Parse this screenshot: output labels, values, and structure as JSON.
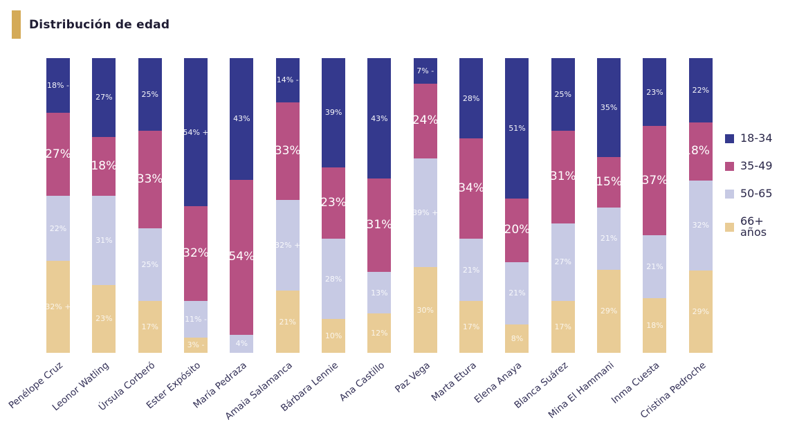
{
  "header": {
    "title": "Distribución de edad",
    "accent_color": "#d4aa57"
  },
  "chart_data": {
    "type": "bar",
    "variant": "stacked-100-percent-column",
    "title": "Distribución de edad",
    "grid": false,
    "ylim": [
      0,
      100
    ],
    "legend_position": "right",
    "categories": [
      "Penélope Cruz",
      "Leonor Watling",
      "Úrsula Corberó",
      "Ester Expósito",
      "María Pedraza",
      "Amaia Salamanca",
      "Bárbara Lennie",
      "Ana Castillo",
      "Paz Vega",
      "Marta Etura",
      "Elena Anaya",
      "Blanca Suárez",
      "Mina El Hammani",
      "Inma Cuesta",
      "Cristina Pedroche"
    ],
    "series": [
      {
        "name": "18-34",
        "color": "#34398d",
        "values": [
          18,
          27,
          25,
          54,
          43,
          14,
          39,
          43,
          7,
          28,
          51,
          25,
          35,
          23,
          22
        ],
        "labels": [
          "18% -",
          "27%",
          "25%",
          "54% +",
          "43%",
          "14% -",
          "39%",
          "43%",
          "7% -",
          "28%",
          "51%",
          "25%",
          "35%",
          "23%",
          "22%"
        ]
      },
      {
        "name": "35-49",
        "color": "#b75183",
        "values": [
          27,
          18,
          33,
          32,
          54,
          33,
          23,
          31,
          24,
          34,
          20,
          31,
          15,
          37,
          18
        ],
        "labels": [
          "27%",
          "18%",
          "33%",
          "32%",
          "54%",
          "33%",
          "23%",
          "31%",
          "24%",
          "34%",
          "20%",
          "31%",
          "15%",
          "37%",
          "18% -"
        ]
      },
      {
        "name": "50-65",
        "color": "#c7cae4",
        "values": [
          22,
          31,
          25,
          11,
          4,
          32,
          28,
          13,
          39,
          21,
          21,
          27,
          21,
          21,
          32
        ],
        "labels": [
          "22%",
          "31%",
          "25%",
          "11% -",
          "4%",
          "32% +",
          "28%",
          "13%",
          "39% +",
          "21%",
          "21%",
          "27%",
          "21%",
          "21%",
          "32%"
        ]
      },
      {
        "name": "66+ años",
        "color": "#e9cc96",
        "values": [
          32,
          23,
          17,
          3,
          0,
          21,
          10,
          12,
          30,
          17,
          8,
          17,
          29,
          18,
          29
        ],
        "labels": [
          "32% +",
          "23%",
          "17%",
          "3% -",
          "",
          "21%",
          "10%",
          "12%",
          "30%",
          "17%",
          "8%",
          "17%",
          "29%",
          "18%",
          "29%"
        ]
      }
    ]
  }
}
